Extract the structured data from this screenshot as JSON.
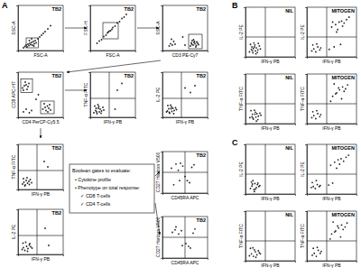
{
  "chart_data": [
    {
      "type": "scatter",
      "title": "TB2",
      "x_label": "FSC-A",
      "y_label": "SSC-A",
      "xlim": [
        0,
        100
      ],
      "ylim": [
        0,
        100
      ],
      "tick_labels": false,
      "color": "#222222",
      "x": [
        12,
        15,
        18,
        20,
        22,
        24,
        26,
        28,
        30,
        32,
        34,
        36,
        38,
        40,
        44,
        48,
        52,
        56,
        60,
        66,
        72,
        25,
        30,
        35
      ],
      "y": [
        6,
        9,
        12,
        8,
        14,
        11,
        16,
        13,
        18,
        12,
        20,
        15,
        22,
        17,
        26,
        30,
        34,
        38,
        42,
        48,
        55,
        22,
        26,
        10
      ],
      "gates": [
        [
          18,
          6,
          45,
          28
        ]
      ]
    },
    {
      "type": "scatter",
      "title": "TB2",
      "x_label": "FSC-A",
      "y_label": "FSC-H",
      "xlim": [
        0,
        100
      ],
      "ylim": [
        0,
        100
      ],
      "tick_labels": false,
      "color": "#222222",
      "x": [
        15,
        20,
        25,
        30,
        35,
        40,
        45,
        50,
        55,
        60,
        65,
        70,
        75,
        80,
        38,
        42,
        48
      ],
      "y": [
        16,
        21,
        24,
        31,
        34,
        41,
        44,
        51,
        54,
        61,
        64,
        71,
        74,
        80,
        39,
        43,
        47
      ],
      "gates": [
        [
          28,
          26,
          62,
          62
        ]
      ]
    },
    {
      "type": "scatter",
      "title": "TB2",
      "x_label": "CD3 PE-Cy7",
      "y_label": "SSC-A",
      "xlim": [
        0,
        100
      ],
      "ylim": [
        0,
        100
      ],
      "tick_labels": false,
      "color": "#222222",
      "x": [
        15,
        18,
        22,
        25,
        28,
        20,
        62,
        65,
        68,
        70,
        72,
        75,
        78,
        66,
        71,
        74,
        80,
        64,
        69,
        76,
        45,
        50
      ],
      "y": [
        10,
        15,
        12,
        20,
        14,
        25,
        10,
        14,
        12,
        18,
        15,
        11,
        16,
        22,
        20,
        8,
        13,
        17,
        24,
        19,
        30,
        12
      ],
      "gates": [
        [
          58,
          4,
          88,
          36
        ]
      ]
    },
    {
      "type": "scatter",
      "title": "TB2",
      "x_label": "CD4 PerCP-Cy5.5",
      "y_label": "CD8 APC-H7",
      "xlim": [
        0,
        100
      ],
      "ylim": [
        0,
        100
      ],
      "tick_labels": false,
      "color": "#222222",
      "x": [
        10,
        14,
        18,
        20,
        22,
        16,
        12,
        24,
        55,
        60,
        62,
        65,
        68,
        70,
        72,
        58,
        66,
        12,
        18,
        25,
        30,
        40,
        45
      ],
      "y": [
        65,
        70,
        72,
        62,
        68,
        78,
        60,
        75,
        18,
        22,
        15,
        25,
        20,
        28,
        16,
        30,
        12,
        12,
        18,
        10,
        15,
        40,
        50
      ],
      "gates": [
        [
          6,
          55,
          32,
          85
        ],
        [
          50,
          8,
          80,
          36
        ]
      ]
    },
    {
      "type": "scatter",
      "title": "TB2",
      "x_label": "IFN-γ PB",
      "y_label": "TNF-α FITC",
      "xlim": [
        0,
        100
      ],
      "ylim": [
        0,
        100
      ],
      "tick_labels": false,
      "color": "#222222",
      "x": [
        8,
        12,
        15,
        18,
        20,
        22,
        25,
        28,
        10,
        14,
        17,
        24,
        30,
        19,
        13,
        60,
        70,
        55
      ],
      "y": [
        10,
        15,
        8,
        20,
        12,
        18,
        14,
        22,
        25,
        12,
        28,
        9,
        16,
        24,
        20,
        60,
        75,
        18
      ],
      "quadrant": [
        42,
        42
      ]
    },
    {
      "type": "scatter",
      "title": "TB2",
      "x_label": "IFN-γ PB",
      "y_label": "IL-2 PE",
      "xlim": [
        0,
        100
      ],
      "ylim": [
        0,
        100
      ],
      "tick_labels": false,
      "color": "#222222",
      "x": [
        9,
        11,
        16,
        19,
        21,
        23,
        26,
        29,
        12,
        15,
        18,
        25,
        31,
        20,
        14,
        62,
        72,
        50
      ],
      "y": [
        12,
        14,
        9,
        19,
        13,
        20,
        15,
        21,
        26,
        11,
        27,
        8,
        17,
        23,
        19,
        55,
        70,
        65
      ],
      "quadrant": [
        42,
        42
      ]
    },
    {
      "type": "scatter",
      "title": "TB2",
      "x_label": "IFN-γ PB",
      "y_label": "TNF-α FITC",
      "xlim": [
        0,
        100
      ],
      "ylim": [
        0,
        100
      ],
      "tick_labels": false,
      "color": "#222222",
      "x": [
        10,
        13,
        16,
        18,
        21,
        24,
        27,
        12,
        15,
        20,
        25,
        30,
        58,
        66
      ],
      "y": [
        12,
        16,
        10,
        20,
        14,
        18,
        22,
        24,
        8,
        26,
        11,
        15,
        62,
        50
      ],
      "quadrant": [
        42,
        42
      ]
    },
    {
      "type": "scatter",
      "title": "TB2",
      "x_label": "IFN-γ PB",
      "y_label": "IL-2 PE",
      "xlim": [
        0,
        100
      ],
      "ylim": [
        0,
        100
      ],
      "tick_labels": false,
      "color": "#222222",
      "x": [
        9,
        12,
        15,
        19,
        22,
        25,
        28,
        11,
        17,
        21,
        26,
        31,
        60,
        68
      ],
      "y": [
        11,
        15,
        9,
        18,
        13,
        21,
        17,
        25,
        27,
        7,
        24,
        14,
        58,
        20
      ],
      "quadrant": [
        42,
        42
      ]
    },
    {
      "type": "scatter",
      "title": "TB2",
      "x_label": "CD45RA APC",
      "y_label": "CD27 Horizon V500",
      "xlim": [
        0,
        100
      ],
      "ylim": [
        0,
        100
      ],
      "tick_labels": false,
      "color": "#222222",
      "x": [
        20,
        30,
        35,
        45,
        55,
        60,
        25,
        40,
        65,
        70,
        50,
        38
      ],
      "y": [
        60,
        70,
        55,
        65,
        30,
        25,
        20,
        72,
        62,
        68,
        40,
        30
      ],
      "quadrant": [
        50,
        50
      ]
    },
    {
      "type": "scatter",
      "title": "TB2",
      "x_label": "CD45RA APC",
      "y_label": "CD27 Horizon V500",
      "xlim": [
        0,
        100
      ],
      "ylim": [
        0,
        100
      ],
      "tick_labels": false,
      "color": "#222222",
      "x": [
        22,
        28,
        36,
        44,
        58,
        62,
        30,
        42,
        68,
        72,
        52
      ],
      "y": [
        62,
        68,
        58,
        30,
        28,
        24,
        75,
        66,
        60,
        70,
        35
      ],
      "quadrant": [
        50,
        50
      ]
    },
    {
      "type": "scatter",
      "title": "NIL",
      "x_label": "IFN-γ PB",
      "y_label": "IL-2 PE",
      "xlim": [
        0,
        100
      ],
      "ylim": [
        0,
        100
      ],
      "tick_labels": false,
      "color": "#222222",
      "x": [
        8,
        12,
        15,
        18,
        20,
        22,
        25,
        28,
        10,
        14,
        17,
        24,
        30,
        19,
        13,
        21,
        26,
        16
      ],
      "y": [
        10,
        15,
        8,
        20,
        12,
        18,
        14,
        22,
        25,
        12,
        28,
        9,
        16,
        24,
        20,
        6,
        27,
        17
      ],
      "quadrant": [
        40,
        40
      ]
    },
    {
      "type": "scatter",
      "title": "MITOGEN",
      "x_label": "IFN-γ PB",
      "y_label": "IL-2 PE",
      "xlim": [
        0,
        100
      ],
      "ylim": [
        0,
        100
      ],
      "tick_labels": false,
      "color": "#222222",
      "x": [
        10,
        14,
        18,
        22,
        26,
        12,
        20,
        28,
        50,
        58,
        65,
        70,
        75,
        80,
        62,
        55,
        68,
        72,
        85,
        60,
        45,
        52
      ],
      "y": [
        12,
        16,
        10,
        20,
        14,
        24,
        26,
        18,
        60,
        65,
        70,
        72,
        68,
        75,
        55,
        20,
        25,
        62,
        80,
        50,
        15,
        70
      ],
      "quadrant": [
        40,
        40
      ]
    },
    {
      "type": "scatter",
      "title": "NIL",
      "x_label": "IFN-γ PB",
      "y_label": "TNF-α FITC",
      "xlim": [
        0,
        100
      ],
      "ylim": [
        0,
        100
      ],
      "tick_labels": false,
      "color": "#222222",
      "x": [
        9,
        13,
        16,
        19,
        21,
        23,
        26,
        29,
        11,
        15,
        18,
        25,
        31,
        20,
        14,
        22
      ],
      "y": [
        12,
        14,
        9,
        19,
        13,
        20,
        15,
        21,
        26,
        11,
        27,
        8,
        17,
        23,
        19,
        5
      ],
      "quadrant": [
        40,
        40
      ]
    },
    {
      "type": "scatter",
      "title": "MITOGEN",
      "x_label": "IFN-γ PB",
      "y_label": "TNF-α FITC",
      "xlim": [
        0,
        100
      ],
      "ylim": [
        0,
        100
      ],
      "tick_labels": false,
      "color": "#222222",
      "x": [
        10,
        14,
        18,
        22,
        26,
        12,
        20,
        28,
        52,
        60,
        66,
        72,
        78,
        82,
        58,
        64,
        70,
        48,
        55,
        75
      ],
      "y": [
        12,
        16,
        10,
        20,
        14,
        24,
        26,
        18,
        55,
        62,
        68,
        74,
        70,
        78,
        60,
        72,
        50,
        45,
        80,
        65
      ],
      "quadrant": [
        40,
        40
      ]
    },
    {
      "type": "scatter",
      "title": "NIL",
      "x_label": "IFN-γ PB",
      "y_label": "IL-2 PE",
      "xlim": [
        0,
        100
      ],
      "ylim": [
        0,
        100
      ],
      "tick_labels": false,
      "color": "#222222",
      "x": [
        10,
        13,
        17,
        19,
        22,
        24,
        27,
        12,
        15,
        20,
        25,
        29,
        18,
        14
      ],
      "y": [
        11,
        16,
        9,
        21,
        13,
        19,
        15,
        24,
        27,
        10,
        22,
        17,
        5,
        20
      ],
      "quadrant": [
        40,
        40
      ]
    },
    {
      "type": "scatter",
      "title": "MITOGEN",
      "x_label": "IFN-γ PB",
      "y_label": "IL-2 PE",
      "xlim": [
        0,
        100
      ],
      "ylim": [
        0,
        100
      ],
      "tick_labels": false,
      "color": "#222222",
      "x": [
        9,
        13,
        17,
        21,
        25,
        11,
        19,
        27,
        48,
        56,
        63,
        69,
        74,
        79,
        60,
        52,
        66,
        84,
        44
      ],
      "y": [
        13,
        15,
        11,
        19,
        15,
        23,
        27,
        17,
        58,
        64,
        69,
        71,
        66,
        74,
        52,
        22,
        60,
        78,
        18
      ],
      "quadrant": [
        40,
        40
      ]
    },
    {
      "type": "scatter",
      "title": "NIL",
      "x_label": "IFN-γ PB",
      "y_label": "TNF-α FITC",
      "xlim": [
        0,
        100
      ],
      "ylim": [
        0,
        100
      ],
      "tick_labels": false,
      "color": "#222222",
      "x": [
        8,
        12,
        16,
        20,
        23,
        26,
        28,
        10,
        15,
        21,
        30,
        18
      ],
      "y": [
        10,
        14,
        9,
        18,
        12,
        20,
        16,
        25,
        26,
        7,
        14,
        22
      ],
      "quadrant": [
        40,
        40
      ]
    },
    {
      "type": "scatter",
      "title": "MITOGEN",
      "x_label": "IFN-γ PB",
      "y_label": "TNF-α FITC",
      "xlim": [
        0,
        100
      ],
      "ylim": [
        0,
        100
      ],
      "tick_labels": false,
      "color": "#222222",
      "x": [
        11,
        15,
        19,
        23,
        27,
        13,
        21,
        29,
        50,
        58,
        64,
        70,
        77,
        81,
        56,
        62,
        68,
        47,
        53,
        73
      ],
      "y": [
        11,
        15,
        9,
        21,
        15,
        25,
        27,
        19,
        54,
        60,
        66,
        72,
        68,
        76,
        58,
        70,
        48,
        44,
        78,
        63
      ],
      "quadrant": [
        40,
        40
      ]
    }
  ],
  "panel_labels": [
    "A",
    "B",
    "C"
  ],
  "note": {
    "title": "Boolean gates to evaluate:",
    "items": [
      "• Cytokine profile",
      "• Phenotype on total response:",
      "✓ CD8 T-cells",
      "✓ CD4 T-cells"
    ]
  }
}
